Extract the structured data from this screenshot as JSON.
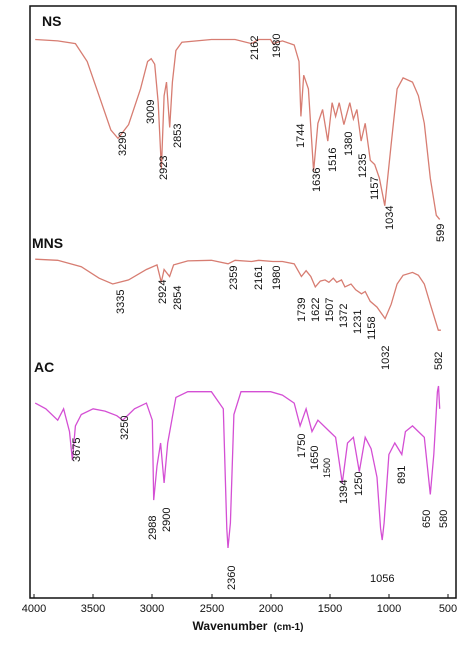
{
  "chart_data": {
    "type": "line",
    "xlabel": "Wavenumber",
    "xlabel_unit": "(cm-1)",
    "xlim": [
      4000,
      500
    ],
    "x_ticks": [
      4000,
      3500,
      3000,
      2500,
      2000,
      1500,
      1000,
      500
    ],
    "x_tick_labels": [
      "4000",
      "3500",
      "3000",
      "2500",
      "2000",
      "1500",
      "1000",
      "500"
    ],
    "grid": false,
    "legend": "none",
    "series": [
      {
        "name": "NS",
        "color": "#d77d72",
        "points": [
          [
            3990,
            0.04
          ],
          [
            3800,
            0.05
          ],
          [
            3650,
            0.07
          ],
          [
            3550,
            0.2
          ],
          [
            3450,
            0.45
          ],
          [
            3350,
            0.7
          ],
          [
            3290,
            0.76
          ],
          [
            3200,
            0.66
          ],
          [
            3100,
            0.4
          ],
          [
            3040,
            0.2
          ],
          [
            3009,
            0.18
          ],
          [
            2980,
            0.22
          ],
          [
            2950,
            0.5
          ],
          [
            2923,
            0.98
          ],
          [
            2900,
            0.45
          ],
          [
            2880,
            0.35
          ],
          [
            2853,
            0.68
          ],
          [
            2830,
            0.35
          ],
          [
            2800,
            0.12
          ],
          [
            2750,
            0.06
          ],
          [
            2500,
            0.04
          ],
          [
            2300,
            0.04
          ],
          [
            2162,
            0.07
          ],
          [
            2100,
            0.04
          ],
          [
            2000,
            0.04
          ],
          [
            1980,
            0.07
          ],
          [
            1900,
            0.05
          ],
          [
            1800,
            0.08
          ],
          [
            1760,
            0.2
          ],
          [
            1744,
            0.6
          ],
          [
            1720,
            0.3
          ],
          [
            1680,
            0.4
          ],
          [
            1636,
            1.0
          ],
          [
            1600,
            0.65
          ],
          [
            1560,
            0.55
          ],
          [
            1516,
            0.78
          ],
          [
            1480,
            0.5
          ],
          [
            1450,
            0.6
          ],
          [
            1420,
            0.5
          ],
          [
            1380,
            0.66
          ],
          [
            1330,
            0.5
          ],
          [
            1300,
            0.62
          ],
          [
            1270,
            0.55
          ],
          [
            1235,
            0.78
          ],
          [
            1200,
            0.65
          ],
          [
            1157,
            0.92
          ],
          [
            1120,
            0.95
          ],
          [
            1080,
            1.05
          ],
          [
            1034,
            1.25
          ],
          [
            980,
            0.8
          ],
          [
            930,
            0.4
          ],
          [
            880,
            0.32
          ],
          [
            800,
            0.35
          ],
          [
            750,
            0.45
          ],
          [
            700,
            0.65
          ],
          [
            650,
            1.05
          ],
          [
            599,
            1.32
          ],
          [
            570,
            1.35
          ]
        ]
      },
      {
        "name": "MNS",
        "color": "#d77d72",
        "points": [
          [
            3990,
            0.02
          ],
          [
            3800,
            0.04
          ],
          [
            3600,
            0.15
          ],
          [
            3450,
            0.35
          ],
          [
            3335,
            0.45
          ],
          [
            3200,
            0.38
          ],
          [
            3050,
            0.2
          ],
          [
            2960,
            0.12
          ],
          [
            2924,
            0.42
          ],
          [
            2900,
            0.2
          ],
          [
            2854,
            0.32
          ],
          [
            2820,
            0.12
          ],
          [
            2700,
            0.05
          ],
          [
            2500,
            0.04
          ],
          [
            2359,
            0.1
          ],
          [
            2300,
            0.04
          ],
          [
            2161,
            0.06
          ],
          [
            2100,
            0.04
          ],
          [
            1980,
            0.06
          ],
          [
            1900,
            0.06
          ],
          [
            1800,
            0.1
          ],
          [
            1739,
            0.32
          ],
          [
            1700,
            0.22
          ],
          [
            1660,
            0.32
          ],
          [
            1622,
            0.5
          ],
          [
            1580,
            0.4
          ],
          [
            1540,
            0.38
          ],
          [
            1507,
            0.42
          ],
          [
            1470,
            0.35
          ],
          [
            1440,
            0.42
          ],
          [
            1400,
            0.38
          ],
          [
            1372,
            0.5
          ],
          [
            1320,
            0.45
          ],
          [
            1280,
            0.55
          ],
          [
            1231,
            0.62
          ],
          [
            1200,
            0.58
          ],
          [
            1158,
            0.75
          ],
          [
            1100,
            0.85
          ],
          [
            1032,
            1.05
          ],
          [
            980,
            0.8
          ],
          [
            930,
            0.45
          ],
          [
            880,
            0.3
          ],
          [
            800,
            0.25
          ],
          [
            750,
            0.3
          ],
          [
            700,
            0.45
          ],
          [
            650,
            0.8
          ],
          [
            582,
            1.25
          ],
          [
            560,
            1.25
          ]
        ]
      },
      {
        "name": "AC",
        "color": "#d44fd4",
        "points": [
          [
            3990,
            0.15
          ],
          [
            3900,
            0.2
          ],
          [
            3800,
            0.3
          ],
          [
            3750,
            0.2
          ],
          [
            3700,
            0.4
          ],
          [
            3675,
            0.65
          ],
          [
            3650,
            0.35
          ],
          [
            3600,
            0.25
          ],
          [
            3500,
            0.2
          ],
          [
            3400,
            0.22
          ],
          [
            3300,
            0.26
          ],
          [
            3250,
            0.3
          ],
          [
            3150,
            0.2
          ],
          [
            3050,
            0.15
          ],
          [
            3000,
            0.3
          ],
          [
            2988,
            1.0
          ],
          [
            2960,
            0.7
          ],
          [
            2930,
            0.5
          ],
          [
            2900,
            0.85
          ],
          [
            2870,
            0.5
          ],
          [
            2800,
            0.1
          ],
          [
            2700,
            0.05
          ],
          [
            2500,
            0.05
          ],
          [
            2400,
            0.2
          ],
          [
            2370,
            1.25
          ],
          [
            2360,
            1.42
          ],
          [
            2340,
            1.2
          ],
          [
            2310,
            0.25
          ],
          [
            2250,
            0.05
          ],
          [
            2000,
            0.05
          ],
          [
            1900,
            0.08
          ],
          [
            1800,
            0.15
          ],
          [
            1750,
            0.35
          ],
          [
            1700,
            0.2
          ],
          [
            1650,
            0.4
          ],
          [
            1600,
            0.3
          ],
          [
            1500,
            0.4
          ],
          [
            1450,
            0.45
          ],
          [
            1394,
            0.85
          ],
          [
            1350,
            0.5
          ],
          [
            1300,
            0.45
          ],
          [
            1250,
            0.75
          ],
          [
            1200,
            0.45
          ],
          [
            1150,
            0.55
          ],
          [
            1100,
            0.8
          ],
          [
            1070,
            1.25
          ],
          [
            1056,
            1.35
          ],
          [
            1040,
            1.2
          ],
          [
            1000,
            0.6
          ],
          [
            950,
            0.5
          ],
          [
            891,
            0.6
          ],
          [
            860,
            0.4
          ],
          [
            800,
            0.35
          ],
          [
            750,
            0.4
          ],
          [
            700,
            0.45
          ],
          [
            650,
            0.95
          ],
          [
            620,
            0.6
          ],
          [
            590,
            0.05
          ],
          [
            580,
            0.0
          ],
          [
            570,
            0.2
          ]
        ]
      }
    ],
    "annotations": {
      "NS": [
        "3290",
        "3009",
        "2923",
        "2853",
        "2162",
        "1980",
        "1744",
        "1636",
        "1516",
        "1380",
        "1235",
        "1157",
        "1034",
        "599"
      ],
      "MNS": [
        "3335",
        "2924",
        "2854",
        "2359",
        "2161",
        "1980",
        "1739",
        "1622",
        "1507",
        "1372",
        "1231",
        "1158",
        "1032",
        "582"
      ],
      "AC": [
        "3675",
        "3250",
        "2988",
        "2900",
        "2360",
        "1750",
        "1650",
        "1500",
        "1394",
        "1250",
        "1056",
        "891",
        "650",
        "580"
      ]
    }
  }
}
